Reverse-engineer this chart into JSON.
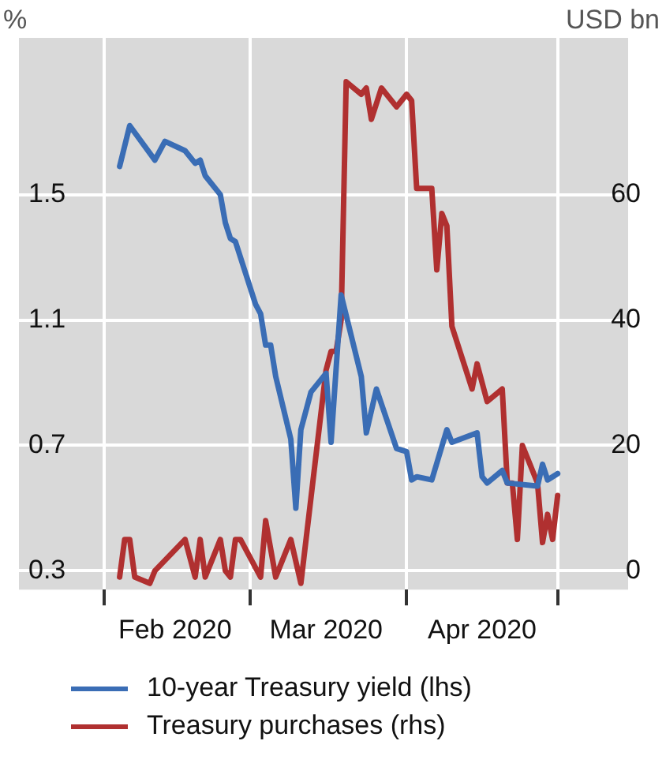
{
  "chart_data": {
    "type": "line",
    "ylabel": "%",
    "y2label": "USD bn",
    "xlim": [
      "2020-01-15",
      "2020-05-15"
    ],
    "xticks": [
      {
        "value": "2020-02-01",
        "label": null
      },
      {
        "value": "2020-02-15",
        "label": "Feb 2020"
      },
      {
        "value": "2020-03-01",
        "label": null
      },
      {
        "value": "2020-03-16",
        "label": "Mar 2020"
      },
      {
        "value": "2020-04-01",
        "label": null
      },
      {
        "value": "2020-04-16",
        "label": "Apr 2020"
      },
      {
        "value": "2020-05-01",
        "label": null
      }
    ],
    "ylim": [
      0.24,
      2.0
    ],
    "yticks": [
      0.3,
      0.7,
      1.1,
      1.5
    ],
    "y2lim": [
      -3,
      85
    ],
    "y2ticks": [
      0,
      20,
      40,
      60
    ],
    "grid": true,
    "legend": "bottom",
    "marker": "none",
    "line_style": "solid",
    "series": [
      {
        "name": "10-year Treasury yield (lhs)",
        "color": "#3a6db5",
        "x": [
          "2020-02-04",
          "2020-02-06",
          "2020-02-11",
          "2020-02-13",
          "2020-02-17",
          "2020-02-19",
          "2020-02-20",
          "2020-02-21",
          "2020-02-24",
          "2020-02-25",
          "2020-02-26",
          "2020-02-27",
          "2020-03-02",
          "2020-03-03",
          "2020-03-04",
          "2020-03-05",
          "2020-03-06",
          "2020-03-09",
          "2020-03-10",
          "2020-03-11",
          "2020-03-13",
          "2020-03-16",
          "2020-03-17",
          "2020-03-19",
          "2020-03-23",
          "2020-03-24",
          "2020-03-26",
          "2020-03-30",
          "2020-04-01",
          "2020-04-02",
          "2020-04-03",
          "2020-04-06",
          "2020-04-09",
          "2020-04-10",
          "2020-04-15",
          "2020-04-16",
          "2020-04-17",
          "2020-04-20",
          "2020-04-21",
          "2020-04-27",
          "2020-04-28",
          "2020-04-29",
          "2020-05-01"
        ],
        "values": [
          1.59,
          1.72,
          1.61,
          1.67,
          1.64,
          1.6,
          1.61,
          1.56,
          1.5,
          1.41,
          1.36,
          1.35,
          1.15,
          1.12,
          1.02,
          1.02,
          0.92,
          0.72,
          0.5,
          0.75,
          0.87,
          0.93,
          0.71,
          1.18,
          0.92,
          0.74,
          0.88,
          0.69,
          0.68,
          0.59,
          0.6,
          0.59,
          0.75,
          0.71,
          0.74,
          0.6,
          0.58,
          0.62,
          0.58,
          0.57,
          0.64,
          0.59,
          0.61
        ]
      },
      {
        "name": "Treasury purchases (rhs)",
        "color": "#b03030",
        "axis": "y2",
        "x": [
          "2020-02-04",
          "2020-02-05",
          "2020-02-06",
          "2020-02-07",
          "2020-02-10",
          "2020-02-11",
          "2020-02-17",
          "2020-02-19",
          "2020-02-20",
          "2020-02-21",
          "2020-02-24",
          "2020-02-25",
          "2020-02-26",
          "2020-02-27",
          "2020-02-28",
          "2020-03-03",
          "2020-03-04",
          "2020-03-06",
          "2020-03-09",
          "2020-03-11",
          "2020-03-16",
          "2020-03-17",
          "2020-03-18",
          "2020-03-19",
          "2020-03-20",
          "2020-03-23",
          "2020-03-24",
          "2020-03-25",
          "2020-03-27",
          "2020-03-30",
          "2020-04-01",
          "2020-04-02",
          "2020-04-03",
          "2020-04-06",
          "2020-04-07",
          "2020-04-08",
          "2020-04-09",
          "2020-04-10",
          "2020-04-14",
          "2020-04-15",
          "2020-04-17",
          "2020-04-20",
          "2020-04-21",
          "2020-04-22",
          "2020-04-23",
          "2020-04-24",
          "2020-04-27",
          "2020-04-28",
          "2020-04-29",
          "2020-04-30",
          "2020-05-01"
        ],
        "values": [
          -1,
          5,
          5,
          -1,
          -2,
          0,
          5,
          -1,
          5,
          -1,
          5,
          0,
          -1,
          5,
          5,
          -1,
          8,
          -1,
          5,
          -2,
          32,
          35,
          35,
          40,
          78,
          76,
          77,
          72,
          77,
          74,
          76,
          75,
          61,
          61,
          48,
          57,
          55,
          39,
          29,
          33,
          27,
          29,
          14,
          14,
          5,
          20,
          14,
          4.5,
          9,
          5,
          12
        ]
      }
    ]
  }
}
